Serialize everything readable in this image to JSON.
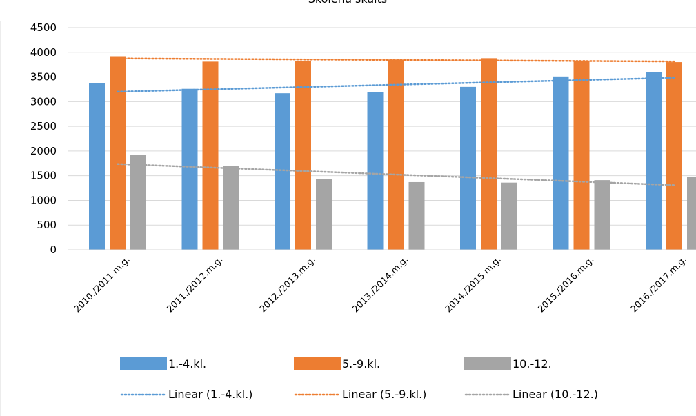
{
  "chart_data": {
    "type": "bar",
    "title": "Skolēnu skaits",
    "xlabel": "",
    "ylabel": "",
    "categories": [
      "2010./2011.m.g.",
      "2011./2012.m.g.",
      "2012./2013.m.g.",
      "2013./2014.m.g.",
      "2014./2015.m.g.",
      "2015./2016.m.g.",
      "2016./2017.m.g."
    ],
    "series": [
      {
        "name": "1.-4.kl.",
        "color": "#5b9bd5",
        "values": [
          3370,
          3260,
          3170,
          3190,
          3300,
          3510,
          3600
        ]
      },
      {
        "name": "5.-9.kl.",
        "color": "#ed7d31",
        "values": [
          3920,
          3810,
          3830,
          3850,
          3880,
          3820,
          3800
        ]
      },
      {
        "name": "10.-12.",
        "color": "#a5a5a5",
        "values": [
          1920,
          1700,
          1430,
          1370,
          1360,
          1410,
          1470
        ]
      }
    ],
    "trendlines": [
      {
        "name": "Linear (1.-4.kl.)",
        "series": "1.-4.kl.",
        "color": "#5b9bd5",
        "style": "dotted"
      },
      {
        "name": "Linear (5.-9.kl.)",
        "series": "5.-9.kl.",
        "color": "#ed7d31",
        "style": "dotted"
      },
      {
        "name": "Linear (10.-12.)",
        "series": "10.-12.",
        "color": "#a5a5a5",
        "style": "dotted"
      }
    ],
    "ylim": [
      0,
      4500
    ],
    "yticks": [
      "0",
      "500",
      "1000",
      "1500",
      "2000",
      "2500",
      "3000",
      "3500",
      "4000",
      "4500"
    ],
    "grid": true,
    "legend_position": "bottom"
  }
}
